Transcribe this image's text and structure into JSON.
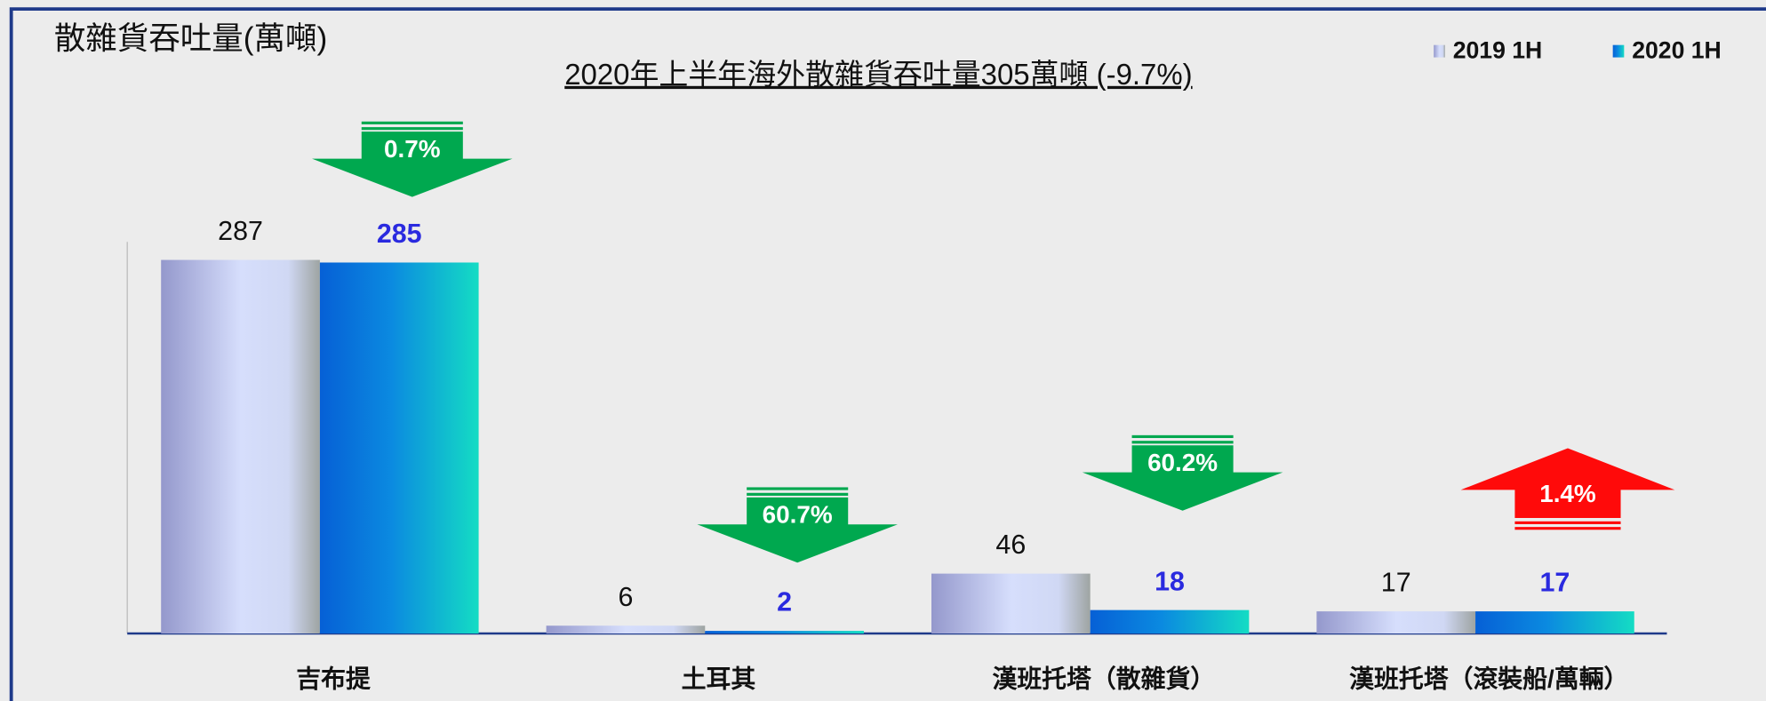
{
  "chart_data": {
    "type": "bar",
    "title": "散雜貨吞吐量(萬噸)",
    "subtitle": "2020年上半年海外散雜貨吞吐量305萬噸 (-9.7%)",
    "categories": [
      "吉布提",
      "土耳其",
      "漢班托塔（散雜貨）",
      "漢班托塔（滾裝船/萬輛）"
    ],
    "series": [
      {
        "name": "2019 1H",
        "color": "#b8c0ec",
        "values": [
          287,
          6,
          46,
          17
        ]
      },
      {
        "name": "2020 1H",
        "color": "#0a7ee0",
        "values": [
          285,
          2,
          18,
          17
        ]
      }
    ],
    "annotations": [
      {
        "text": "0.7%",
        "direction": "down",
        "color": "#00a84f"
      },
      {
        "text": "60.7%",
        "direction": "down",
        "color": "#00a84f"
      },
      {
        "text": "60.2%",
        "direction": "down",
        "color": "#00a84f"
      },
      {
        "text": "1.4%",
        "direction": "up",
        "color": "#ff0a0a"
      }
    ],
    "legend": "top-right"
  }
}
